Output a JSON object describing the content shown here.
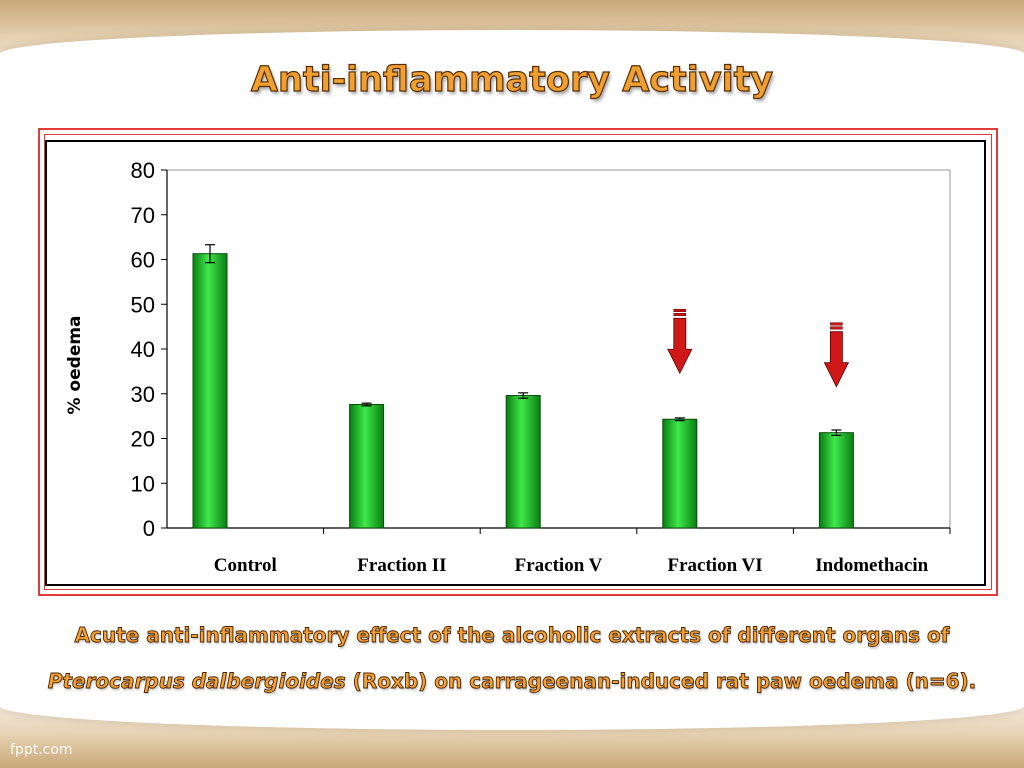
{
  "slide": {
    "title": "Anti-inflammatory Activity",
    "caption": {
      "part1": "Acute anti-inflammatory effect of the alcoholic extracts of different organs of ",
      "italic": "Pterocarpus dalbergioides",
      "part2": " (Roxb) on carrageenan-induced rat paw oedema (n=6)."
    },
    "watermark": "fppt.com"
  },
  "colors": {
    "bar_dark": "#0a7d12",
    "bar_light": "#3fe84a",
    "arrow": "#d01818",
    "frame": "#e03a3a",
    "title": "#f0a030"
  },
  "chart_data": {
    "type": "bar",
    "title": "",
    "xlabel": "",
    "ylabel": "% oedema",
    "ylim": [
      0,
      80
    ],
    "yticks": [
      "0",
      "10",
      "20",
      "30",
      "40",
      "50",
      "60",
      "70",
      "80"
    ],
    "categories": [
      "Control",
      "Fraction II",
      "Fraction V",
      "Fraction VI",
      "Indomethacin"
    ],
    "values": [
      61.3,
      27.6,
      29.6,
      24.3,
      21.3
    ],
    "errors": [
      2.0,
      0.3,
      0.6,
      0.3,
      0.6
    ],
    "highlighted": [
      "Fraction VI",
      "Indomethacin"
    ],
    "grid": false,
    "legend": "none"
  }
}
